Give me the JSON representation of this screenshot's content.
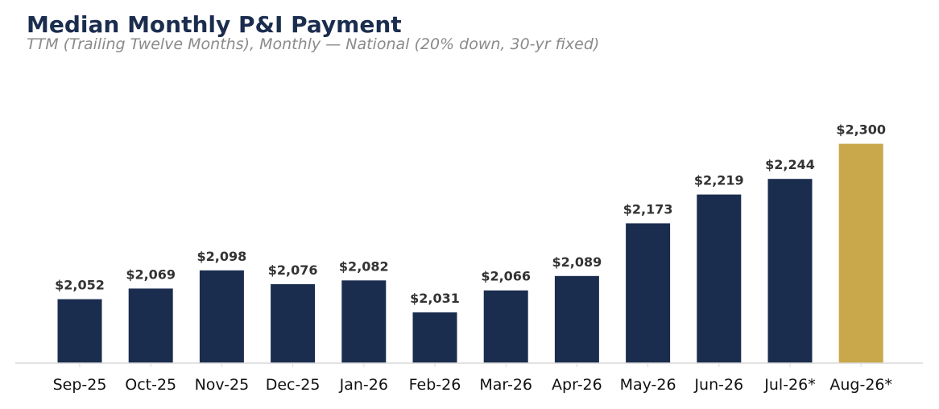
{
  "chart_data": {
    "type": "bar",
    "title": "Median Monthly P&I Payment",
    "subtitle": "TTM (Trailing Twelve Months), Monthly — National (20% down, 30-yr fixed)",
    "xlabel": "",
    "ylabel": "",
    "categories": [
      "Sep-25",
      "Oct-25",
      "Nov-25",
      "Dec-25",
      "Jan-26",
      "Feb-26",
      "Mar-26",
      "Apr-26",
      "May-26",
      "Jun-26",
      "Jul-26*",
      "Aug-26*"
    ],
    "values": [
      2052,
      2069,
      2098,
      2076,
      2082,
      2031,
      2066,
      2089,
      2173,
      2219,
      2244,
      2300
    ],
    "data_labels": [
      "$2,052",
      "$2,069",
      "$2,098",
      "$2,076",
      "$2,082",
      "$2,031",
      "$2,066",
      "$2,089",
      "$2,173",
      "$2,219",
      "$2,244",
      "$2,300"
    ],
    "highlight_index": 11,
    "ylim": [
      1950,
      2320
    ],
    "grid": false,
    "legend": "none",
    "colors": {
      "bar": "#1b2d4f",
      "highlight": "#c8a84a",
      "axis": "#d9d9d9",
      "title": "#1b2d4f",
      "subtitle": "#8a8a8a"
    }
  }
}
